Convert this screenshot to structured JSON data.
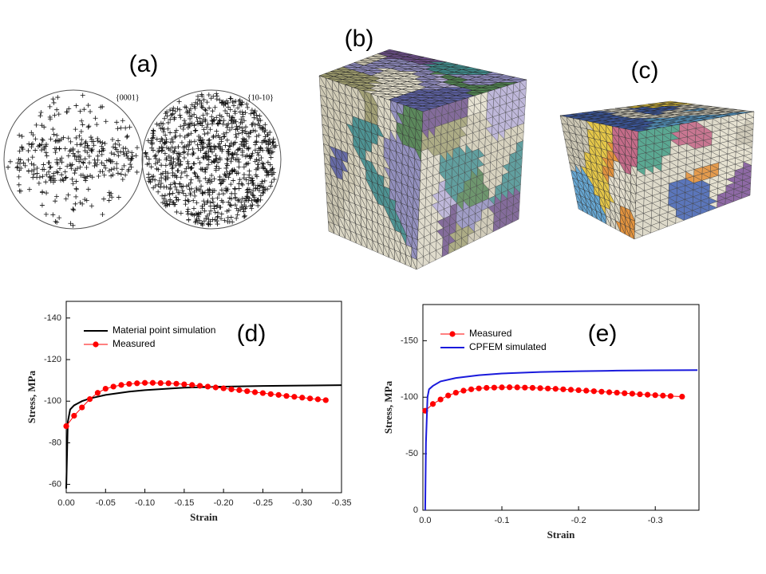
{
  "panels": {
    "a": "(a)",
    "b": "(b)",
    "c": "(c)"
  },
  "pole_figures": [
    "{0001}",
    "{10-10}"
  ],
  "chart_data": [
    {
      "type": "line",
      "annotation": "(d)",
      "xlabel": "Strain",
      "ylabel": "Stress, MPa",
      "xlim": [
        0,
        -0.35
      ],
      "ylim": [
        -56,
        -148
      ],
      "xticks": [
        {
          "value": 0,
          "label": "0.00"
        },
        -0.05,
        {
          "value": -0.1,
          "label": "-0.10"
        },
        -0.15,
        {
          "value": -0.2,
          "label": "-0.20"
        },
        -0.25,
        {
          "value": -0.3,
          "label": "-0.30"
        },
        -0.35
      ],
      "yticks": [
        -60,
        -80,
        -100,
        -120,
        -140
      ],
      "legend": "upper left",
      "series": [
        {
          "name": "Material point simulation",
          "color": "#000000",
          "marker": "none",
          "x": [
            0,
            -0.002,
            -0.005,
            -0.01,
            -0.02,
            -0.03,
            -0.05,
            -0.08,
            -0.1,
            -0.15,
            -0.2,
            -0.25,
            -0.3,
            -0.35
          ],
          "values": [
            -58,
            -90,
            -96,
            -98,
            -100,
            -101.3,
            -103,
            -104.6,
            -105.3,
            -106.5,
            -107,
            -107.3,
            -107.5,
            -107.7
          ]
        },
        {
          "name": "Measured",
          "color": "#ff0000",
          "marker": "circle",
          "x": [
            0,
            -0.01,
            -0.02,
            -0.03,
            -0.04,
            -0.05,
            -0.06,
            -0.07,
            -0.08,
            -0.09,
            -0.1,
            -0.11,
            -0.12,
            -0.13,
            -0.14,
            -0.15,
            -0.16,
            -0.17,
            -0.18,
            -0.19,
            -0.2,
            -0.21,
            -0.22,
            -0.23,
            -0.24,
            -0.25,
            -0.26,
            -0.27,
            -0.28,
            -0.29,
            -0.3,
            -0.31,
            -0.32,
            -0.33
          ],
          "values": [
            -88,
            -93,
            -97,
            -101,
            -104,
            -106,
            -107,
            -107.8,
            -108.3,
            -108.6,
            -108.8,
            -108.8,
            -108.7,
            -108.6,
            -108.4,
            -108.1,
            -107.8,
            -107.4,
            -107,
            -106.6,
            -106.2,
            -105.7,
            -105.3,
            -104.8,
            -104.3,
            -103.9,
            -103.4,
            -103,
            -102.5,
            -102.1,
            -101.7,
            -101.3,
            -100.9,
            -100.5
          ]
        }
      ]
    },
    {
      "type": "line",
      "annotation": "(e)",
      "xlabel": "Strain",
      "ylabel": "Stress, MPa",
      "xlim": [
        0.003,
        -0.357
      ],
      "ylim": [
        0,
        -182
      ],
      "xticks": [
        {
          "value": 0,
          "label": "0.0"
        },
        -0.1,
        -0.2,
        -0.3
      ],
      "yticks": [
        0,
        -50,
        -100,
        -150
      ],
      "legend": "upper left",
      "series": [
        {
          "name": "Measured",
          "color": "#ff0000",
          "marker": "circle",
          "x": [
            0,
            -0.01,
            -0.02,
            -0.03,
            -0.04,
            -0.05,
            -0.06,
            -0.07,
            -0.08,
            -0.09,
            -0.1,
            -0.11,
            -0.12,
            -0.13,
            -0.14,
            -0.15,
            -0.16,
            -0.17,
            -0.18,
            -0.19,
            -0.2,
            -0.21,
            -0.22,
            -0.23,
            -0.24,
            -0.25,
            -0.26,
            -0.27,
            -0.28,
            -0.29,
            -0.3,
            -0.31,
            -0.32,
            -0.335
          ],
          "values": [
            -88,
            -94,
            -98,
            -101.5,
            -104,
            -105.8,
            -107,
            -107.8,
            -108.3,
            -108.5,
            -108.7,
            -108.8,
            -108.7,
            -108.5,
            -108.3,
            -108,
            -107.7,
            -107.4,
            -107,
            -106.6,
            -106.2,
            -105.8,
            -105.3,
            -104.9,
            -104.4,
            -104,
            -103.5,
            -103.1,
            -102.6,
            -102.2,
            -101.8,
            -101.4,
            -101,
            -100.5
          ]
        },
        {
          "name": "CPFEM simulated",
          "color": "#1a1adc",
          "marker": "none",
          "x": [
            0,
            -0.001,
            -0.003,
            -0.005,
            -0.01,
            -0.02,
            -0.04,
            -0.07,
            -0.1,
            -0.15,
            -0.2,
            -0.25,
            -0.3,
            -0.355
          ],
          "values": [
            0,
            -60,
            -100,
            -107,
            -110,
            -114,
            -117,
            -119.5,
            -121,
            -122.3,
            -123,
            -123.5,
            -123.8,
            -124
          ]
        }
      ]
    }
  ]
}
